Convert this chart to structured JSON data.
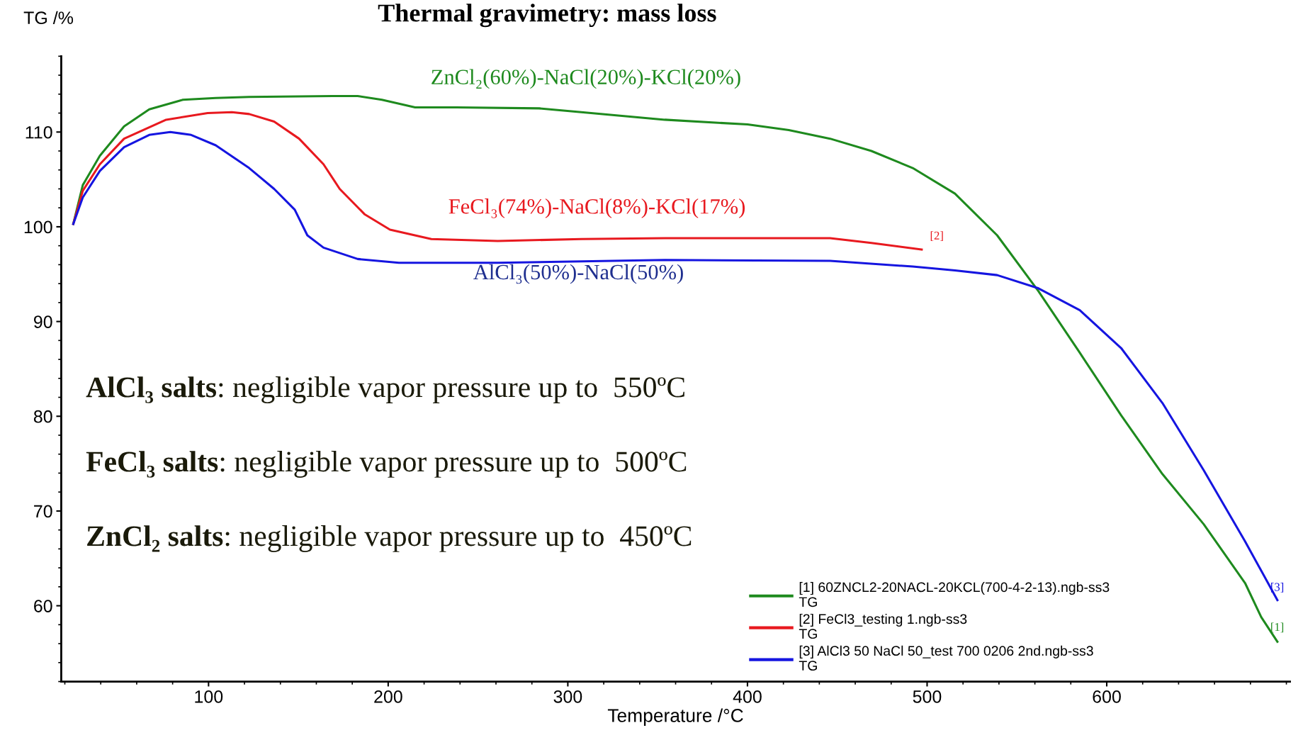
{
  "chart_data": {
    "type": "line",
    "title": "Thermal gravimetry: mass loss",
    "xlabel": "Temperature /°C",
    "ylabel": "TG /%",
    "xlim": [
      18,
      702
    ],
    "ylim": [
      52,
      118
    ],
    "xticks": [
      100,
      200,
      300,
      400,
      500,
      600
    ],
    "yticks": [
      60,
      70,
      80,
      90,
      100,
      110
    ],
    "grid": false,
    "legend": "bottom right",
    "marker": "none",
    "line_style": "solid",
    "series": [
      {
        "name": "[1] 60ZNCL2-20NACL-20KCL(700-4-2-13).ngb-ss3\nTG",
        "color": "#1e8a1e",
        "x": [
          24.7,
          30,
          39.5,
          53,
          67,
          85.7,
          104,
          122.6,
          169,
          183,
          196.5,
          215,
          238,
          284,
          307.5,
          354,
          400,
          423,
          446,
          469,
          492,
          515.5,
          539,
          562,
          585,
          608,
          631,
          654,
          677,
          686,
          695
        ],
        "values": [
          100.3,
          104.4,
          107.5,
          110.6,
          112.4,
          113.4,
          113.6,
          113.7,
          113.8,
          113.8,
          113.4,
          112.6,
          112.6,
          112.5,
          112.1,
          111.3,
          110.8,
          110.2,
          109.3,
          108.0,
          106.2,
          103.5,
          99.1,
          93.2,
          86.7,
          80.1,
          73.9,
          68.6,
          62.4,
          58.8,
          56.2
        ]
      },
      {
        "name": "[2] FeCl3_testing 1.ngb-ss3\nTG",
        "color": "#e8191f",
        "x": [
          24.7,
          30,
          39.5,
          53,
          76.4,
          99.5,
          113,
          122.6,
          136.5,
          150.4,
          164,
          173,
          187,
          201,
          224,
          261,
          307.5,
          354,
          446,
          469,
          497
        ],
        "values": [
          100.3,
          103.8,
          106.6,
          109.3,
          111.3,
          112.0,
          112.1,
          111.9,
          111.1,
          109.3,
          106.6,
          104.0,
          101.3,
          99.7,
          98.7,
          98.5,
          98.7,
          98.8,
          98.8,
          98.3,
          97.6
        ]
      },
      {
        "name": "[3] AlCl3 50 NaCl 50_test 700 0206 2nd.ngb-ss3\nTG",
        "color": "#1515e0",
        "x": [
          24.7,
          30,
          39.5,
          53,
          67,
          78.7,
          90.3,
          104,
          122.6,
          136.5,
          148,
          155,
          164,
          183,
          206,
          261,
          354,
          446,
          492,
          515.5,
          539,
          562,
          585,
          608,
          631,
          654,
          677,
          695
        ],
        "values": [
          100.3,
          103.1,
          105.9,
          108.4,
          109.7,
          110.0,
          109.7,
          108.6,
          106.2,
          104.0,
          101.8,
          99.1,
          97.8,
          96.6,
          96.2,
          96.2,
          96.5,
          96.4,
          95.8,
          95.4,
          94.9,
          93.5,
          91.2,
          87.2,
          81.4,
          74.3,
          66.8,
          60.6
        ]
      }
    ],
    "annotations": [
      "ZnCl₂(60%)-NaCl(20%)-KCl(20%)",
      "FeCl₃(74%)-NaCl(8%)-KCl(17%)",
      "AlCl₃(50%)-NaCl(50%)",
      "[1]",
      "[2]",
      "[3]",
      "AlCl₃ salts: negligible vapor pressure up to  550ºC",
      "FeCl₃ salts: negligible vapor pressure up to  500ºC",
      "ZnCl₂ salts: negligible vapor pressure up to  450ºC"
    ]
  }
}
